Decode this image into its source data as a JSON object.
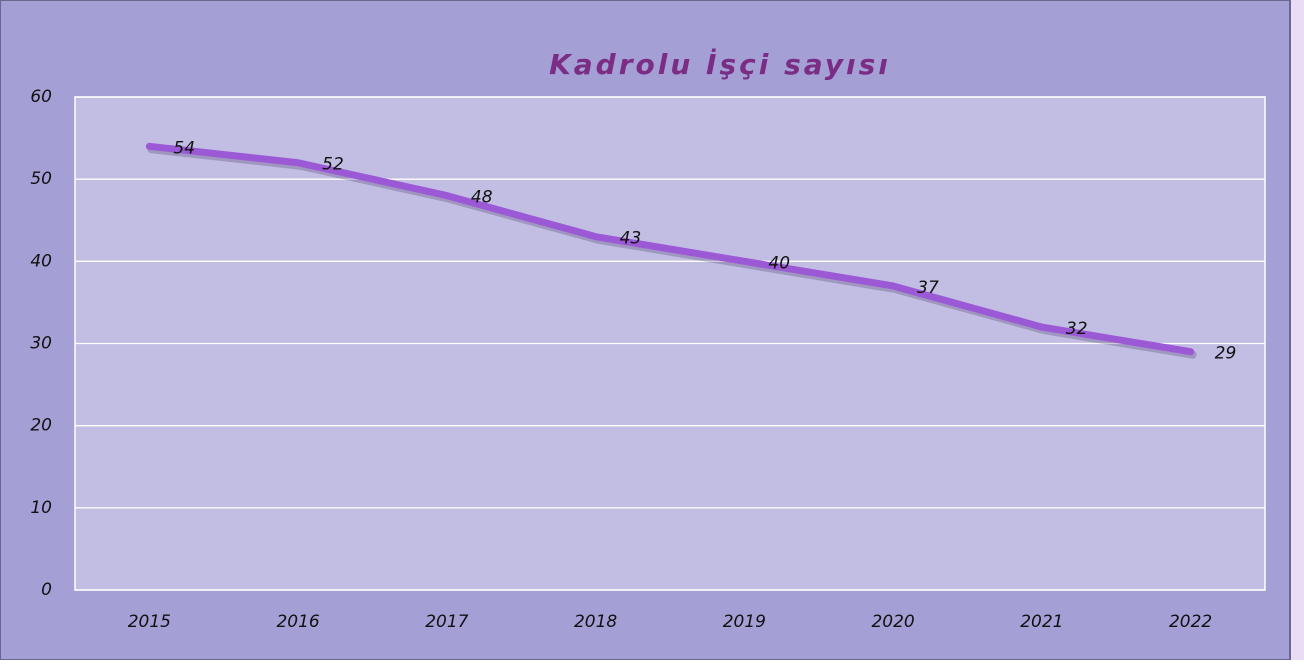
{
  "chart_data": {
    "type": "line",
    "title": "Kadrolu İşçi sayısı",
    "categories": [
      "2015",
      "2016",
      "2017",
      "2018",
      "2019",
      "2020",
      "2021",
      "2022"
    ],
    "series": [
      {
        "name": "Kadrolu İşçi sayısı",
        "color": "#9b59d6",
        "values": [
          54,
          52,
          48,
          43,
          40,
          37,
          32,
          29
        ]
      }
    ],
    "ylim": [
      0,
      60
    ],
    "yticks": [
      0,
      10,
      20,
      30,
      40,
      50,
      60
    ],
    "grid": true
  }
}
